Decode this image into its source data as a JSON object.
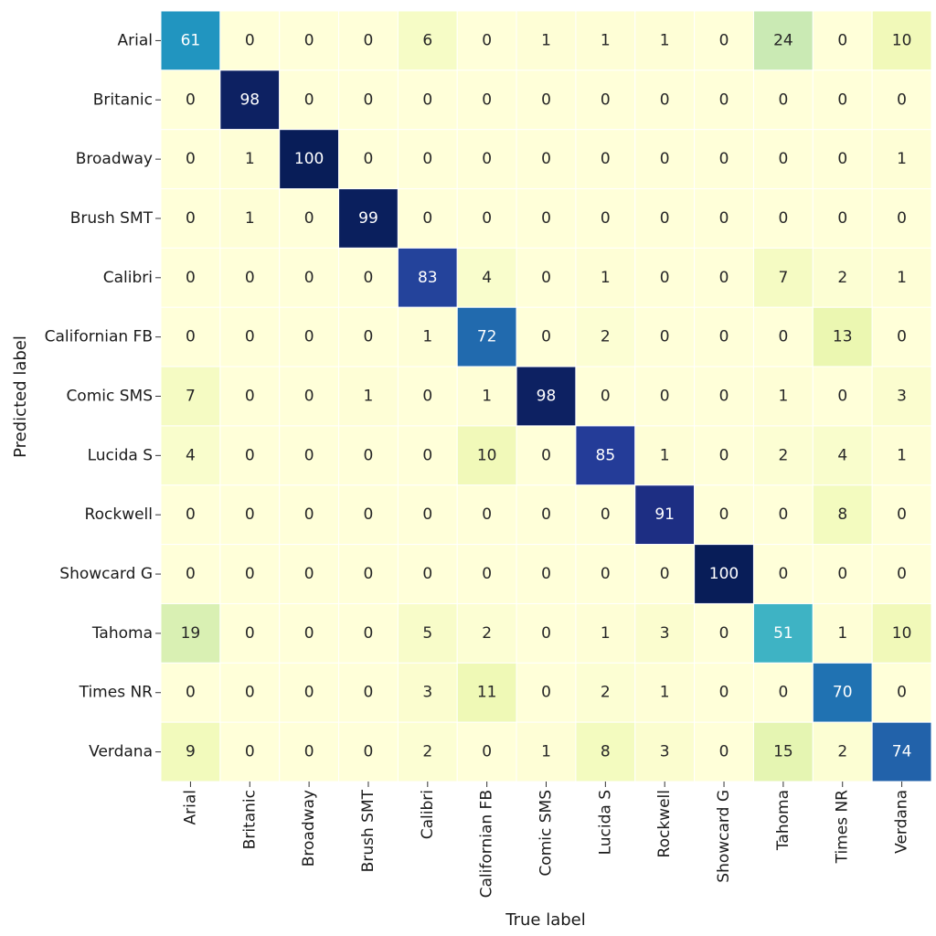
{
  "chart_data": {
    "type": "heatmap",
    "title": "",
    "xlabel": "True label",
    "ylabel": "Predicted label",
    "x_categories": [
      "Arial",
      "Britanic",
      "Broadway",
      "Brush SMT",
      "Calibri",
      "Californian FB",
      "Comic SMS",
      "Lucida S",
      "Rockwell",
      "Showcard G",
      "Tahoma",
      "Times NR",
      "Verdana"
    ],
    "y_categories": [
      "Arial",
      "Britanic",
      "Broadway",
      "Brush SMT",
      "Calibri",
      "Californian FB",
      "Comic SMS",
      "Lucida S",
      "Rockwell",
      "Showcard G",
      "Tahoma",
      "Times NR",
      "Verdana"
    ],
    "values": [
      [
        61,
        0,
        0,
        0,
        6,
        0,
        1,
        1,
        1,
        0,
        24,
        0,
        10
      ],
      [
        0,
        98,
        0,
        0,
        0,
        0,
        0,
        0,
        0,
        0,
        0,
        0,
        0
      ],
      [
        0,
        1,
        100,
        0,
        0,
        0,
        0,
        0,
        0,
        0,
        0,
        0,
        1
      ],
      [
        0,
        1,
        0,
        99,
        0,
        0,
        0,
        0,
        0,
        0,
        0,
        0,
        0
      ],
      [
        0,
        0,
        0,
        0,
        83,
        4,
        0,
        1,
        0,
        0,
        7,
        2,
        1
      ],
      [
        0,
        0,
        0,
        0,
        1,
        72,
        0,
        2,
        0,
        0,
        0,
        13,
        0
      ],
      [
        7,
        0,
        0,
        1,
        0,
        1,
        98,
        0,
        0,
        0,
        1,
        0,
        3
      ],
      [
        4,
        0,
        0,
        0,
        0,
        10,
        0,
        85,
        1,
        0,
        2,
        4,
        1
      ],
      [
        0,
        0,
        0,
        0,
        0,
        0,
        0,
        0,
        91,
        0,
        0,
        8,
        0
      ],
      [
        0,
        0,
        0,
        0,
        0,
        0,
        0,
        0,
        0,
        100,
        0,
        0,
        0
      ],
      [
        19,
        0,
        0,
        0,
        5,
        2,
        0,
        1,
        3,
        0,
        51,
        1,
        10
      ],
      [
        0,
        0,
        0,
        0,
        3,
        11,
        0,
        2,
        1,
        0,
        0,
        70,
        0
      ],
      [
        9,
        0,
        0,
        0,
        2,
        0,
        1,
        8,
        3,
        0,
        15,
        2,
        74
      ]
    ],
    "value_range": [
      0,
      100
    ],
    "colormap": "YlGnBu",
    "colorbar": false,
    "grid": false,
    "cell_border_color": "#ffffff",
    "dark_text_color": "#262626",
    "light_text_color": "#ffffff"
  }
}
